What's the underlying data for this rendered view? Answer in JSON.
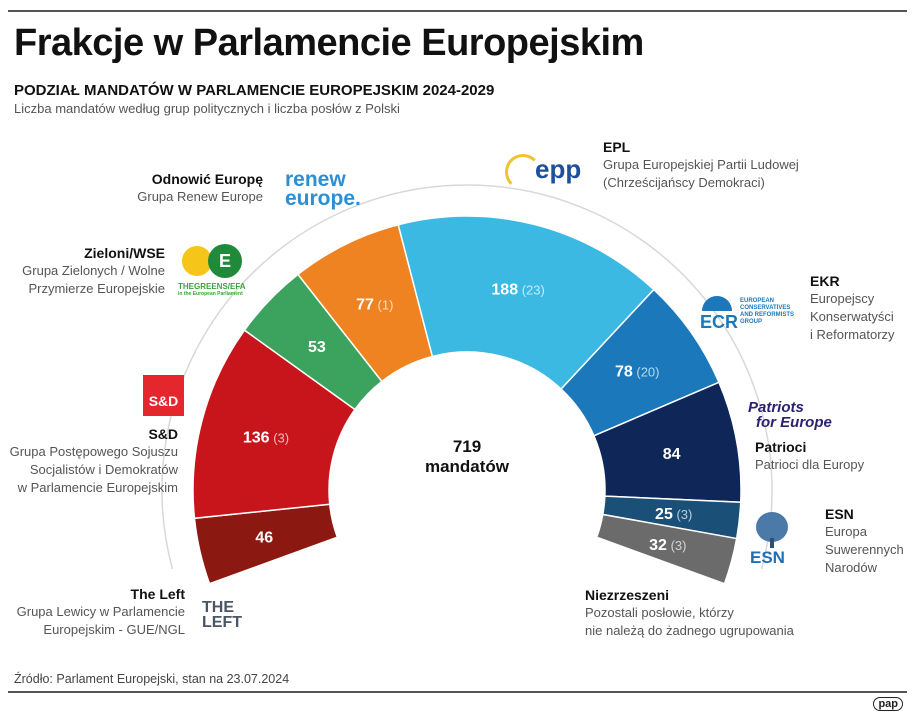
{
  "title": "Frakcje w Parlamencie Europejskim",
  "subtitle": "PODZIAŁ MANDATÓW W PARLAMENCIE EUROPEJSKIM 2024-2029",
  "description": "Liczba mandatów według grup politycznych i liczba posłów z Polski",
  "source": "Źródło: Parlament Europejski, stan na 23.07.2024",
  "agency_logo": "pap",
  "chart_data": {
    "type": "pie",
    "subtype": "semicircle-donut",
    "center_label": {
      "value": "719",
      "unit": "mandatów"
    },
    "total": 719,
    "series": [
      {
        "key": "left",
        "label": "46",
        "polish": "",
        "value": 46,
        "polish_value": null,
        "color": "#8c1812"
      },
      {
        "key": "sd",
        "label": "136",
        "polish": "(3)",
        "value": 136,
        "polish_value": 3,
        "color": "#c8151b"
      },
      {
        "key": "greens",
        "label": "53",
        "polish": "",
        "value": 53,
        "polish_value": null,
        "color": "#3ba35e"
      },
      {
        "key": "renew",
        "label": "77",
        "polish": "(1)",
        "value": 77,
        "polish_value": 1,
        "color": "#ef8221"
      },
      {
        "key": "epp",
        "label": "188",
        "polish": "(23)",
        "value": 188,
        "polish_value": 23,
        "color": "#3cb9e2"
      },
      {
        "key": "ecr",
        "label": "78",
        "polish": "(20)",
        "value": 78,
        "polish_value": 20,
        "color": "#1a78bb"
      },
      {
        "key": "pfe",
        "label": "84",
        "polish": "",
        "value": 84,
        "polish_value": null,
        "color": "#0e2658"
      },
      {
        "key": "esn",
        "label": "25",
        "polish": "(3)",
        "value": 25,
        "polish_value": 3,
        "color": "#1a5078"
      },
      {
        "key": "ni",
        "label": "32",
        "polish": "(3)",
        "value": 32,
        "polish_value": 3,
        "color": "#6b6b6b"
      }
    ]
  },
  "groups": {
    "renew": {
      "name": "Odnowić Europę",
      "full": "Grupa Renew Europe",
      "logo": [
        "renew",
        "europe."
      ]
    },
    "greens": {
      "name": "Zieloni/WSE",
      "full": [
        "Grupa Zielonych / Wolne",
        "Przymierze Europejskie"
      ],
      "logo": [
        "THE",
        "GREENS/EFA",
        "in the European Parliament"
      ]
    },
    "sd": {
      "name": "S&D",
      "full": [
        "Grupa Postępowego Sojuszu",
        "Socjalistów i Demokratów",
        "w Parlamencie Europejskim"
      ],
      "logo": "S&D"
    },
    "left": {
      "name": "The Left",
      "full": [
        "Grupa Lewicy w Parlamencie",
        "Europejskim - GUE/NGL"
      ],
      "logo": [
        "THE",
        "LEFT"
      ]
    },
    "epp": {
      "name": "EPL",
      "full": [
        "Grupa Europejskiej Partii Ludowej",
        "(Chrześcijańscy Demokraci)"
      ],
      "logo": "epp"
    },
    "ecr": {
      "name": "EKR",
      "full": [
        "Europejscy",
        "Konserwatyści",
        "i Reformatorzy"
      ],
      "logo": [
        "ECR",
        "EUROPEAN",
        "CONSERVATIVES",
        "AND REFORMISTS",
        "GROUP"
      ]
    },
    "pfe": {
      "name": "Patrioci",
      "full": "Patrioci dla Europy",
      "logo": [
        "Patriots",
        "for Europe"
      ]
    },
    "esn": {
      "name": "ESN",
      "full": [
        "Europa",
        "Suwerennych",
        "Narodów"
      ],
      "logo": "ESN"
    },
    "ni": {
      "name": "Niezrzeszeni",
      "full": [
        "Pozostali posłowie, którzy",
        "nie należą do żadnego ugrupowania"
      ]
    }
  }
}
